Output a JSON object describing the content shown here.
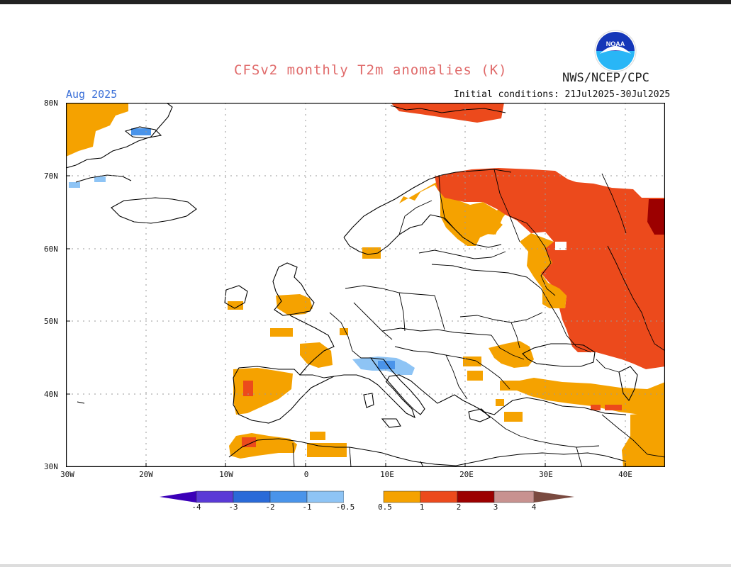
{
  "title": "CFSv2 monthly T2m anomalies (K)",
  "agency": "NWS/NCEP/CPC",
  "month": "Aug 2025",
  "initial_conditions": "Initial conditions: 21Jul2025-30Jul2025",
  "logo_text": "NOAA",
  "lat_labels": [
    "80N",
    "70N",
    "60N",
    "50N",
    "40N",
    "30N"
  ],
  "lon_labels": [
    "30W",
    "20W",
    "10W",
    "0",
    "10E",
    "20E",
    "30E",
    "40E"
  ],
  "colorbar": {
    "tick_labels": [
      "-4",
      "-3",
      "-2",
      "-1",
      "-0.5",
      "0.5",
      "1",
      "2",
      "3",
      "4"
    ],
    "colors": [
      "#3b00b8",
      "#5a3ad6",
      "#2a6ad8",
      "#4a94ea",
      "#8ec4f5",
      "#ffffff",
      "#f5a200",
      "#ec4a1c",
      "#9c0000",
      "#c89290"
    ]
  },
  "map_extent": {
    "lon": [
      -30,
      45
    ],
    "lat": [
      30,
      80
    ]
  },
  "colors": {
    "title": "#e06a6a",
    "month": "#3a6fd8",
    "warm_05": "#f5a200",
    "warm_1": "#ec4a1c",
    "warm_2": "#9c0000",
    "cool_1": "#4a94ea",
    "cool_05": "#8ec4f5"
  }
}
